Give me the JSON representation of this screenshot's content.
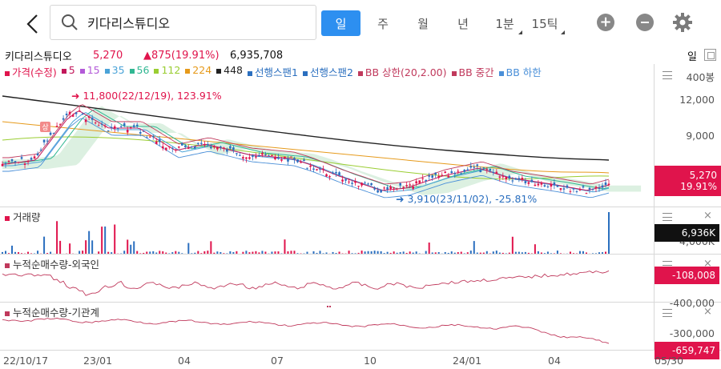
{
  "header": {
    "search_text": "키다리스튜디오",
    "periods": [
      "일",
      "주",
      "월",
      "년",
      "1분",
      "15틱"
    ],
    "active_period": "일"
  },
  "info": {
    "name": "키다리스튜디오",
    "price": "5,270",
    "change": "▲875(19.91%)",
    "volume": "6,935,708",
    "unit": "일"
  },
  "legend": [
    {
      "label": "가격(수정)",
      "color": "#e0144c"
    },
    {
      "label": "5",
      "color": "#c2185b"
    },
    {
      "label": "15",
      "color": "#b35ad8"
    },
    {
      "label": "35",
      "color": "#4aa3d8"
    },
    {
      "label": "56",
      "color": "#31b792"
    },
    {
      "label": "112",
      "color": "#9acd32"
    },
    {
      "label": "224",
      "color": "#e69a1b"
    },
    {
      "label": "448",
      "color": "#222222"
    },
    {
      "label": "선행스팬1",
      "color": "#2b6fbf"
    },
    {
      "label": "선행스팬2",
      "color": "#2b6fbf"
    },
    {
      "label": "BB 상한(20,2.00)",
      "color": "#c0395c"
    },
    {
      "label": "BB 중간",
      "color": "#c0395c"
    },
    {
      "label": "BB 하한",
      "color": "#4a8fd8"
    }
  ],
  "price_panel": {
    "y_ticks": [
      "400봉",
      "12,000",
      "9,000"
    ],
    "high_annotation": "11,800(22/12/19), 123.91%",
    "low_annotation": "3,910(23/11/02), -25.81%",
    "tag_price": "5,270",
    "tag_pct": "19.91%",
    "badge": "상"
  },
  "volume_panel": {
    "title": "거래량",
    "y_ticks": [
      "4,000K"
    ],
    "tag": "6,936K"
  },
  "foreign_panel": {
    "title": "누적순매수량-외국인",
    "y_ticks": [
      "-400,000"
    ],
    "tag": "-108,008"
  },
  "inst_panel": {
    "title": "누적순매수량-기관계",
    "y_ticks": [
      "-300,000"
    ],
    "tag": "-659,747"
  },
  "x_dates": [
    "22/10/17",
    "23/01",
    "04",
    "07",
    "10",
    "24/01",
    "04",
    "05/30"
  ],
  "colors": {
    "up": "#e0144c",
    "down": "#2b6fbf",
    "accent": "#2d8ff0"
  }
}
